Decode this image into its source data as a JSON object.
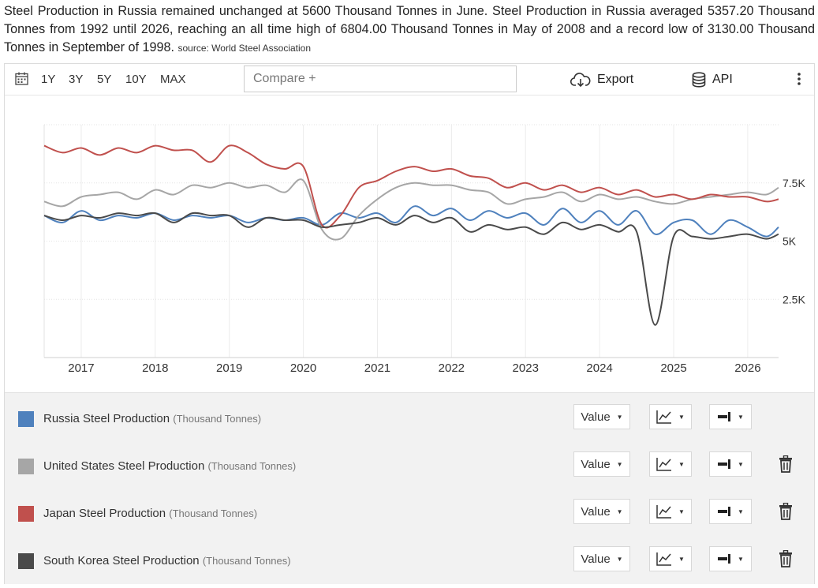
{
  "description": {
    "text": "Steel Production in Russia remained unchanged at 5600 Thousand Tonnes in June. Steel Production in Russia averaged 5357.20 Thousand Tonnes from 1992 until 2026, reaching an all time high of 6804.00 Thousand Tonnes in May of 2008 and a record low of 3130.00 Thousand Tonnes in September of 1998.",
    "source": "source: World Steel Association"
  },
  "toolbar": {
    "ranges": [
      "1Y",
      "3Y",
      "5Y",
      "10Y",
      "MAX"
    ],
    "compare_placeholder": "Compare +",
    "export_label": "Export",
    "api_label": "API"
  },
  "chart_data": {
    "type": "line",
    "title": "",
    "xlabel": "",
    "ylabel": "",
    "x_tick_labels": [
      "2017",
      "2018",
      "2019",
      "2020",
      "2021",
      "2022",
      "2023",
      "2024",
      "2025",
      "2026"
    ],
    "y_tick_labels": [
      "2.5K",
      "5K",
      "7.5K"
    ],
    "y_ticks": [
      2500,
      5000,
      7500
    ],
    "ylim": [
      0,
      10000
    ],
    "xlim": [
      "2016-07",
      "2026-06"
    ],
    "grid": true,
    "y_axis_position": "right",
    "x": [
      "2016-07",
      "2016-10",
      "2017-01",
      "2017-04",
      "2017-07",
      "2017-10",
      "2018-01",
      "2018-04",
      "2018-07",
      "2018-10",
      "2019-01",
      "2019-04",
      "2019-07",
      "2019-10",
      "2020-01",
      "2020-04",
      "2020-07",
      "2020-10",
      "2021-01",
      "2021-04",
      "2021-07",
      "2021-10",
      "2022-01",
      "2022-04",
      "2022-07",
      "2022-10",
      "2023-01",
      "2023-04",
      "2023-07",
      "2023-10",
      "2024-01",
      "2024-04",
      "2024-07",
      "2024-10",
      "2025-01",
      "2025-04",
      "2025-07",
      "2025-10",
      "2026-01",
      "2026-04",
      "2026-06"
    ],
    "series": [
      {
        "name": "Russia Steel Production",
        "unit": "(Thousand Tonnes)",
        "color": "#4f81bd",
        "values": [
          6100,
          5800,
          6300,
          5900,
          6100,
          6000,
          6200,
          5900,
          6100,
          6000,
          6100,
          5800,
          6000,
          5900,
          6000,
          5700,
          6200,
          6000,
          6200,
          5800,
          6500,
          6100,
          6400,
          5900,
          6300,
          6000,
          6200,
          5700,
          6400,
          5800,
          6300,
          5700,
          6300,
          5300,
          5800,
          5900,
          5300,
          5900,
          5600,
          5200,
          5600
        ]
      },
      {
        "name": "United States Steel Production",
        "unit": "(Thousand Tonnes)",
        "color": "#a6a6a6",
        "values": [
          6700,
          6500,
          6900,
          7000,
          7100,
          6800,
          7200,
          7000,
          7400,
          7300,
          7500,
          7300,
          7400,
          7100,
          7600,
          5500,
          5100,
          6100,
          6800,
          7300,
          7500,
          7400,
          7400,
          7200,
          7100,
          6600,
          6800,
          6900,
          7100,
          6700,
          7000,
          6800,
          6900,
          6700,
          6600,
          6800,
          6900,
          7000,
          7100,
          7000,
          7300
        ]
      },
      {
        "name": "Japan Steel Production",
        "unit": "(Thousand Tonnes)",
        "color": "#c0504d",
        "values": [
          9100,
          8800,
          9000,
          8700,
          9000,
          8800,
          9100,
          8900,
          8900,
          8400,
          9100,
          8800,
          8300,
          8100,
          8200,
          5700,
          6100,
          7300,
          7600,
          8000,
          8200,
          8000,
          8100,
          7800,
          7700,
          7300,
          7500,
          7200,
          7400,
          7100,
          7300,
          7000,
          7200,
          6900,
          7000,
          6800,
          7000,
          6900,
          6900,
          6700,
          6800
        ]
      },
      {
        "name": "South Korea Steel Production",
        "unit": "(Thousand Tonnes)",
        "color": "#4a4a4a",
        "values": [
          6100,
          5900,
          6100,
          6000,
          6200,
          6100,
          6200,
          5800,
          6200,
          6100,
          6100,
          5600,
          6000,
          5900,
          5900,
          5600,
          5700,
          5800,
          6000,
          5700,
          6100,
          5800,
          6000,
          5400,
          5700,
          5500,
          5600,
          5300,
          5800,
          5500,
          5700,
          5400,
          5400,
          1400,
          5200,
          5200,
          5100,
          5200,
          5300,
          5100,
          5300
        ]
      }
    ]
  },
  "legend": {
    "items": [
      {
        "name": "Russia Steel Production",
        "unit": "(Thousand Tonnes)",
        "value_label": "Value",
        "removable": false
      },
      {
        "name": "United States Steel Production",
        "unit": "(Thousand Tonnes)",
        "value_label": "Value",
        "removable": true
      },
      {
        "name": "Japan Steel Production",
        "unit": "(Thousand Tonnes)",
        "value_label": "Value",
        "removable": true
      },
      {
        "name": "South Korea Steel Production",
        "unit": "(Thousand Tonnes)",
        "value_label": "Value",
        "removable": true
      }
    ]
  },
  "icons": {
    "calendar": "calendar-icon",
    "export": "cloud-download-icon",
    "api": "database-icon",
    "more": "kebab-menu-icon",
    "chart_type": "line-chart-icon",
    "axis": "axis-align-icon",
    "delete": "trash-icon"
  }
}
